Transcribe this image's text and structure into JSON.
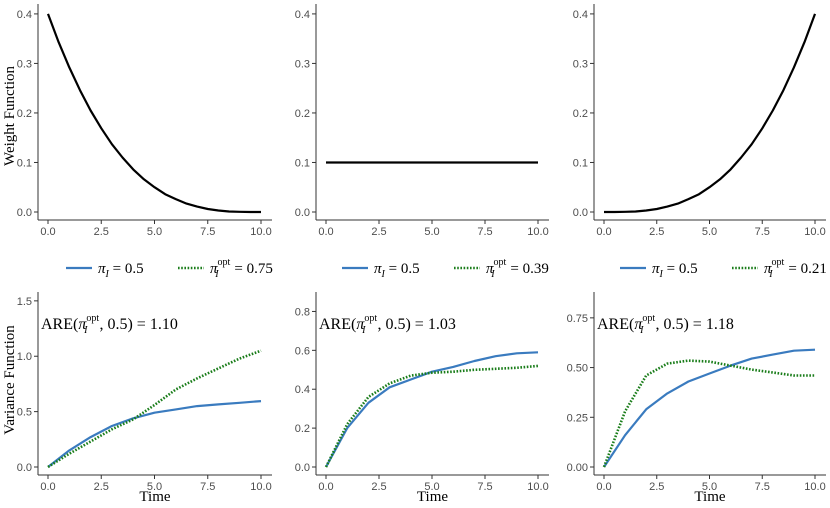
{
  "y_axis_labels": {
    "top": "Weight Function",
    "bottom": "Variance Function"
  },
  "x_axis_label": "Time",
  "colors": {
    "solid": "#3a7bbf",
    "dotted": "#1a7d1a",
    "weight": "#000000",
    "axis": "#333333"
  },
  "chart_data": [
    {
      "type": "line",
      "panel": "top-left",
      "title": "",
      "xlim": [
        0,
        10
      ],
      "ylim": [
        0,
        0.42
      ],
      "xticks": [
        "0.0",
        "2.5",
        "5.0",
        "7.5",
        "10.0"
      ],
      "xtick_values": [
        0,
        2.5,
        5,
        7.5,
        10
      ],
      "yticks": [
        "0.0",
        "0.1",
        "0.2",
        "0.3",
        "0.4"
      ],
      "ytick_values": [
        0,
        0.1,
        0.2,
        0.3,
        0.4
      ],
      "series": [
        {
          "name": "weight",
          "style": "solid-black",
          "x": [
            0,
            0.5,
            1,
            1.5,
            2,
            2.5,
            3,
            3.5,
            4,
            4.5,
            5,
            5.5,
            6,
            6.5,
            7,
            7.5,
            8,
            8.5,
            9,
            9.5,
            10
          ],
          "y": [
            0.4,
            0.343,
            0.292,
            0.246,
            0.205,
            0.169,
            0.137,
            0.11,
            0.086,
            0.066,
            0.05,
            0.036,
            0.026,
            0.017,
            0.011,
            0.006,
            0.003,
            0.001,
            0.0004,
            0.0001,
            0
          ]
        }
      ]
    },
    {
      "type": "line",
      "panel": "top-middle",
      "title": "",
      "xlim": [
        0,
        10
      ],
      "ylim": [
        0,
        0.42
      ],
      "xticks": [
        "0.0",
        "2.5",
        "5.0",
        "7.5",
        "10.0"
      ],
      "xtick_values": [
        0,
        2.5,
        5,
        7.5,
        10
      ],
      "yticks": [
        "0.0",
        "0.1",
        "0.2",
        "0.3",
        "0.4"
      ],
      "ytick_values": [
        0,
        0.1,
        0.2,
        0.3,
        0.4
      ],
      "series": [
        {
          "name": "weight",
          "style": "solid-black",
          "x": [
            0,
            10
          ],
          "y": [
            0.1,
            0.1
          ]
        }
      ]
    },
    {
      "type": "line",
      "panel": "top-right",
      "title": "",
      "xlim": [
        0,
        10
      ],
      "ylim": [
        0,
        0.42
      ],
      "xticks": [
        "0.0",
        "2.5",
        "5.0",
        "7.5",
        "10.0"
      ],
      "xtick_values": [
        0,
        2.5,
        5,
        7.5,
        10
      ],
      "yticks": [
        "0.0",
        "0.1",
        "0.2",
        "0.3",
        "0.4"
      ],
      "ytick_values": [
        0,
        0.1,
        0.2,
        0.3,
        0.4
      ],
      "series": [
        {
          "name": "weight",
          "style": "solid-black",
          "x": [
            0,
            0.5,
            1,
            1.5,
            2,
            2.5,
            3,
            3.5,
            4,
            4.5,
            5,
            5.5,
            6,
            6.5,
            7,
            7.5,
            8,
            8.5,
            9,
            9.5,
            10
          ],
          "y": [
            0,
            0.0001,
            0.0004,
            0.001,
            0.003,
            0.006,
            0.011,
            0.017,
            0.026,
            0.036,
            0.05,
            0.066,
            0.086,
            0.11,
            0.137,
            0.169,
            0.205,
            0.246,
            0.292,
            0.343,
            0.4
          ]
        }
      ]
    },
    {
      "type": "line",
      "panel": "bottom-left",
      "title": "",
      "legend": {
        "solid_label": "= 0.5",
        "dotted_label": "= 0.75",
        "placement": "top"
      },
      "annotation": {
        "prefix": "ARE(",
        "suffix": ", 0.5) = ",
        "value": "1.10"
      },
      "xlabel": "Time",
      "xlim": [
        0,
        10
      ],
      "ylim": [
        0,
        1.58
      ],
      "xticks": [
        "0.0",
        "2.5",
        "5.0",
        "7.5",
        "10.0"
      ],
      "xtick_values": [
        0,
        2.5,
        5,
        7.5,
        10
      ],
      "yticks": [
        "0.0",
        "0.5",
        "1.0",
        "1.5"
      ],
      "ytick_values": [
        0,
        0.5,
        1.0,
        1.5
      ],
      "series": [
        {
          "name": "pi_I = 0.5",
          "style": "solid",
          "x": [
            0,
            1,
            2,
            3,
            4,
            5,
            6,
            7,
            8,
            9,
            10
          ],
          "y": [
            0,
            0.15,
            0.27,
            0.37,
            0.44,
            0.49,
            0.52,
            0.55,
            0.565,
            0.58,
            0.595
          ]
        },
        {
          "name": "pi_I opt = 0.75",
          "style": "dotted",
          "x": [
            0,
            1,
            2,
            3,
            4,
            5,
            6,
            7,
            8,
            9,
            10
          ],
          "y": [
            0,
            0.12,
            0.23,
            0.34,
            0.43,
            0.56,
            0.7,
            0.8,
            0.89,
            0.98,
            1.05
          ]
        }
      ]
    },
    {
      "type": "line",
      "panel": "bottom-middle",
      "title": "",
      "legend": {
        "solid_label": "= 0.5",
        "dotted_label": "= 0.39",
        "placement": "top"
      },
      "annotation": {
        "prefix": "ARE(",
        "suffix": ", 0.5) = ",
        "value": "1.03"
      },
      "xlabel": "Time",
      "xlim": [
        0,
        10
      ],
      "ylim": [
        0,
        0.9
      ],
      "xticks": [
        "0.0",
        "2.5",
        "5.0",
        "7.5",
        "10.0"
      ],
      "xtick_values": [
        0,
        2.5,
        5,
        7.5,
        10
      ],
      "yticks": [
        "0.0",
        "0.2",
        "0.4",
        "0.6",
        "0.8"
      ],
      "ytick_values": [
        0,
        0.2,
        0.4,
        0.6,
        0.8
      ],
      "series": [
        {
          "name": "pi_I = 0.5",
          "style": "solid",
          "x": [
            0,
            1,
            2,
            3,
            4,
            5,
            6,
            7,
            8,
            9,
            10
          ],
          "y": [
            0,
            0.2,
            0.33,
            0.41,
            0.45,
            0.49,
            0.515,
            0.545,
            0.57,
            0.585,
            0.59
          ]
        },
        {
          "name": "pi_I opt = 0.39",
          "style": "dotted",
          "x": [
            0,
            1,
            2,
            3,
            4,
            5,
            6,
            7,
            8,
            9,
            10
          ],
          "y": [
            0,
            0.22,
            0.36,
            0.43,
            0.47,
            0.485,
            0.49,
            0.5,
            0.505,
            0.51,
            0.52
          ]
        }
      ]
    },
    {
      "type": "line",
      "panel": "bottom-right",
      "title": "",
      "legend": {
        "solid_label": "= 0.5",
        "dotted_label": "= 0.21",
        "placement": "top"
      },
      "annotation": {
        "prefix": "ARE(",
        "suffix": ", 0.5) = ",
        "value": "1.18"
      },
      "xlabel": "Time",
      "xlim": [
        0,
        10
      ],
      "ylim": [
        0,
        0.88
      ],
      "xticks": [
        "0.0",
        "2.5",
        "5.0",
        "7.5",
        "10.0"
      ],
      "xtick_values": [
        0,
        2.5,
        5,
        7.5,
        10
      ],
      "yticks": [
        "0.00",
        "0.25",
        "0.50",
        "0.75"
      ],
      "ytick_values": [
        0,
        0.25,
        0.5,
        0.75
      ],
      "series": [
        {
          "name": "pi_I = 0.5",
          "style": "solid",
          "x": [
            0,
            1,
            2,
            3,
            4,
            5,
            6,
            7,
            8,
            9,
            10
          ],
          "y": [
            0,
            0.16,
            0.29,
            0.37,
            0.43,
            0.47,
            0.51,
            0.545,
            0.565,
            0.585,
            0.59
          ]
        },
        {
          "name": "pi_I opt = 0.21",
          "style": "dotted",
          "x": [
            0,
            1,
            2,
            3,
            4,
            5,
            6,
            7,
            8,
            9,
            10
          ],
          "y": [
            0,
            0.28,
            0.46,
            0.52,
            0.535,
            0.53,
            0.51,
            0.49,
            0.475,
            0.46,
            0.46
          ]
        }
      ]
    }
  ]
}
